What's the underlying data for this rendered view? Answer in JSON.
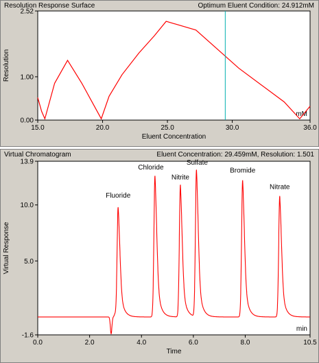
{
  "top_panel": {
    "title": "Resolution Response Surface",
    "status": "Optimum Eluent Condition: 24.912mM",
    "unit": "mM"
  },
  "bottom_panel": {
    "title": "Virtual Chromatogram",
    "status": "Eluent Concentration: 29.459mM, Resolution: 1.501",
    "unit": "min"
  },
  "colors": {
    "curve": "#ff0000",
    "cursor": "#00b0b0",
    "plot_bg": "#ffffff"
  },
  "chart_data": [
    {
      "type": "line",
      "xlabel": "Eluent Concentration",
      "ylabel": "Resolution",
      "xlim": [
        15.0,
        36.0
      ],
      "ylim": [
        0.0,
        2.52
      ],
      "x_ticks": [
        "15.0",
        "20.0",
        "25.0",
        "30.0",
        "36.0"
      ],
      "y_ticks": [
        "0.00",
        "1.00",
        "2.52"
      ],
      "cursor_x": 29.459,
      "series": [
        {
          "x": [
            15.0,
            15.3,
            15.55,
            16.3,
            17.3,
            18.4,
            19.9,
            20.5,
            21.5,
            22.8,
            24.0,
            24.9,
            27.2,
            30.5,
            34.0,
            35.2,
            36.0
          ],
          "y": [
            0.52,
            0.2,
            0.03,
            0.85,
            1.38,
            0.85,
            0.03,
            0.55,
            1.05,
            1.55,
            1.95,
            2.28,
            2.08,
            1.2,
            0.42,
            0.03,
            0.32
          ]
        }
      ]
    },
    {
      "type": "line",
      "xlabel": "Time",
      "ylabel": "Virtual Response",
      "xlim": [
        0.0,
        10.5
      ],
      "ylim": [
        -1.6,
        13.9
      ],
      "x_ticks": [
        "0.0",
        "2.0",
        "4.0",
        "6.0",
        "8.0",
        "10.5"
      ],
      "y_ticks": [
        "-1.6",
        "5.0",
        "10.0",
        "13.9"
      ],
      "baseline": 0.0,
      "dip": {
        "t": 2.83,
        "depth": -1.5
      },
      "peaks": [
        {
          "name": "Fluoride",
          "t": 3.1,
          "height": 9.8
        },
        {
          "name": "Chloride",
          "t": 4.52,
          "height": 12.6
        },
        {
          "name": "Nitrite",
          "t": 5.5,
          "height": 11.8
        },
        {
          "name": "Sulfate",
          "t": 6.12,
          "height": 13.1
        },
        {
          "name": "Bromide",
          "t": 7.9,
          "height": 12.2
        },
        {
          "name": "Nitrate",
          "t": 9.33,
          "height": 10.8
        }
      ]
    }
  ]
}
